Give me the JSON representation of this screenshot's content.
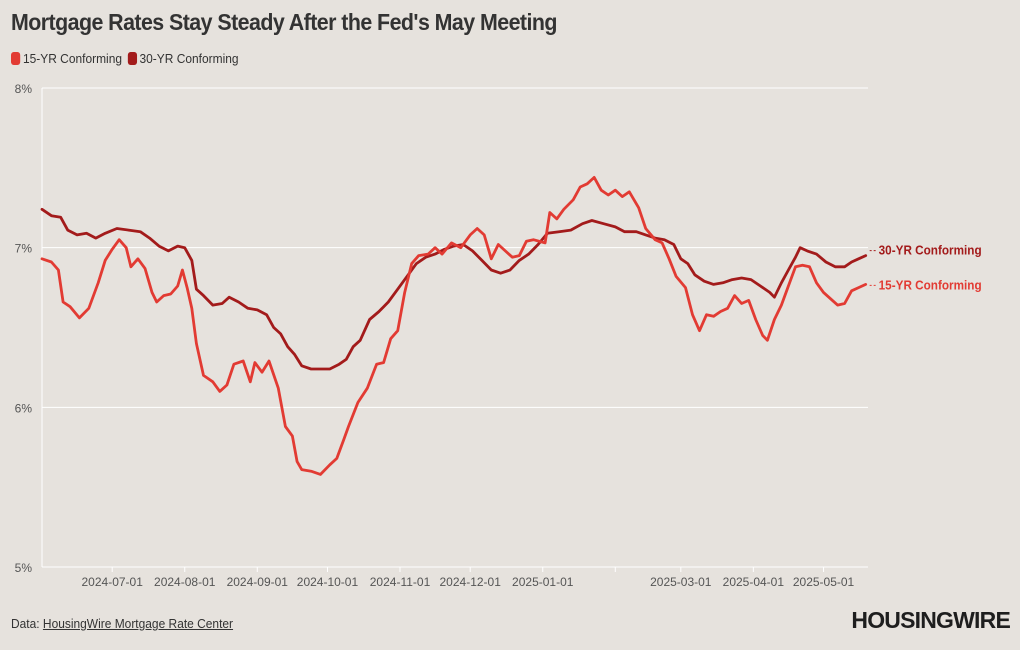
{
  "title": "Mortgage Rates Stay Steady After the Fed's May Meeting",
  "source_prefix": "Data:",
  "source_link": "HousingWire Mortgage Rate Center",
  "logo_text": "HOUSINGWIRE",
  "colors": {
    "background": "#e6e2dd",
    "series_15yr": "#e23b33",
    "series_30yr": "#a31b1b",
    "grid": "#ffffff",
    "axis_text": "#555555"
  },
  "chart_data": {
    "type": "line",
    "title": "Mortgage Rates Stay Steady After the Fed's May Meeting",
    "xlabel": "",
    "ylabel": "",
    "ylim": [
      5,
      8
    ],
    "y_ticks": [
      5,
      6,
      7,
      8
    ],
    "y_tick_labels": [
      "5%",
      "6%",
      "7%",
      "8%"
    ],
    "x_range": [
      "2024-06-01",
      "2025-05-20"
    ],
    "x_ticks": [
      "2024-07-01",
      "2024-08-01",
      "2024-09-01",
      "2024-10-01",
      "2024-11-01",
      "2024-12-01",
      "2025-01-01",
      "2025-03-01",
      "2025-04-01",
      "2025-05-01"
    ],
    "grid": true,
    "legend": "top-left",
    "series": [
      {
        "name": "15-YR Conforming",
        "end_label": "15-YR Conforming",
        "color": "#e23b33",
        "points": [
          [
            "2024-06-01",
            6.93
          ],
          [
            "2024-06-05",
            6.91
          ],
          [
            "2024-06-08",
            6.86
          ],
          [
            "2024-06-10",
            6.66
          ],
          [
            "2024-06-13",
            6.63
          ],
          [
            "2024-06-17",
            6.56
          ],
          [
            "2024-06-21",
            6.62
          ],
          [
            "2024-06-25",
            6.78
          ],
          [
            "2024-06-28",
            6.92
          ],
          [
            "2024-07-01",
            6.99
          ],
          [
            "2024-07-04",
            7.05
          ],
          [
            "2024-07-07",
            7.0
          ],
          [
            "2024-07-09",
            6.88
          ],
          [
            "2024-07-12",
            6.93
          ],
          [
            "2024-07-15",
            6.87
          ],
          [
            "2024-07-18",
            6.72
          ],
          [
            "2024-07-20",
            6.66
          ],
          [
            "2024-07-23",
            6.7
          ],
          [
            "2024-07-26",
            6.71
          ],
          [
            "2024-07-29",
            6.76
          ],
          [
            "2024-07-31",
            6.86
          ],
          [
            "2024-08-02",
            6.75
          ],
          [
            "2024-08-04",
            6.62
          ],
          [
            "2024-08-06",
            6.4
          ],
          [
            "2024-08-09",
            6.2
          ],
          [
            "2024-08-13",
            6.16
          ],
          [
            "2024-08-16",
            6.1
          ],
          [
            "2024-08-19",
            6.14
          ],
          [
            "2024-08-22",
            6.27
          ],
          [
            "2024-08-26",
            6.29
          ],
          [
            "2024-08-29",
            6.16
          ],
          [
            "2024-08-31",
            6.28
          ],
          [
            "2024-09-03",
            6.22
          ],
          [
            "2024-09-06",
            6.29
          ],
          [
            "2024-09-10",
            6.12
          ],
          [
            "2024-09-13",
            5.88
          ],
          [
            "2024-09-16",
            5.82
          ],
          [
            "2024-09-18",
            5.66
          ],
          [
            "2024-09-20",
            5.61
          ],
          [
            "2024-09-24",
            5.6
          ],
          [
            "2024-09-28",
            5.58
          ],
          [
            "2024-10-02",
            5.64
          ],
          [
            "2024-10-05",
            5.68
          ],
          [
            "2024-10-08",
            5.8
          ],
          [
            "2024-10-10",
            5.88
          ],
          [
            "2024-10-14",
            6.03
          ],
          [
            "2024-10-18",
            6.12
          ],
          [
            "2024-10-22",
            6.27
          ],
          [
            "2024-10-25",
            6.28
          ],
          [
            "2024-10-28",
            6.43
          ],
          [
            "2024-10-31",
            6.48
          ],
          [
            "2024-11-03",
            6.72
          ],
          [
            "2024-11-06",
            6.9
          ],
          [
            "2024-11-09",
            6.95
          ],
          [
            "2024-11-13",
            6.96
          ],
          [
            "2024-11-16",
            7.0
          ],
          [
            "2024-11-19",
            6.96
          ],
          [
            "2024-11-23",
            7.03
          ],
          [
            "2024-11-27",
            7.0
          ],
          [
            "2024-12-01",
            7.08
          ],
          [
            "2024-12-04",
            7.12
          ],
          [
            "2024-12-07",
            7.08
          ],
          [
            "2024-12-10",
            6.93
          ],
          [
            "2024-12-13",
            7.02
          ],
          [
            "2024-12-16",
            6.98
          ],
          [
            "2024-12-19",
            6.94
          ],
          [
            "2024-12-22",
            6.95
          ],
          [
            "2024-12-25",
            7.04
          ],
          [
            "2024-12-28",
            7.05
          ],
          [
            "2025-01-02",
            7.03
          ],
          [
            "2025-01-04",
            7.22
          ],
          [
            "2025-01-07",
            7.18
          ],
          [
            "2025-01-10",
            7.24
          ],
          [
            "2025-01-14",
            7.3
          ],
          [
            "2025-01-17",
            7.38
          ],
          [
            "2025-01-20",
            7.4
          ],
          [
            "2025-01-23",
            7.44
          ],
          [
            "2025-01-26",
            7.36
          ],
          [
            "2025-01-29",
            7.33
          ],
          [
            "2025-02-01",
            7.36
          ],
          [
            "2025-02-04",
            7.32
          ],
          [
            "2025-02-07",
            7.35
          ],
          [
            "2025-02-11",
            7.25
          ],
          [
            "2025-02-14",
            7.12
          ],
          [
            "2025-02-18",
            7.05
          ],
          [
            "2025-02-21",
            7.03
          ],
          [
            "2025-02-24",
            6.93
          ],
          [
            "2025-02-27",
            6.82
          ],
          [
            "2025-03-03",
            6.75
          ],
          [
            "2025-03-06",
            6.58
          ],
          [
            "2025-03-09",
            6.48
          ],
          [
            "2025-03-12",
            6.58
          ],
          [
            "2025-03-15",
            6.57
          ],
          [
            "2025-03-18",
            6.6
          ],
          [
            "2025-03-21",
            6.62
          ],
          [
            "2025-03-24",
            6.7
          ],
          [
            "2025-03-27",
            6.65
          ],
          [
            "2025-03-30",
            6.67
          ],
          [
            "2025-04-02",
            6.55
          ],
          [
            "2025-04-05",
            6.45
          ],
          [
            "2025-04-07",
            6.42
          ],
          [
            "2025-04-10",
            6.55
          ],
          [
            "2025-04-13",
            6.64
          ],
          [
            "2025-04-16",
            6.76
          ],
          [
            "2025-04-19",
            6.88
          ],
          [
            "2025-04-22",
            6.89
          ],
          [
            "2025-04-25",
            6.88
          ],
          [
            "2025-04-28",
            6.78
          ],
          [
            "2025-05-01",
            6.72
          ],
          [
            "2025-05-04",
            6.68
          ],
          [
            "2025-05-07",
            6.64
          ],
          [
            "2025-05-10",
            6.65
          ],
          [
            "2025-05-13",
            6.73
          ],
          [
            "2025-05-16",
            6.75
          ],
          [
            "2025-05-19",
            6.77
          ]
        ]
      },
      {
        "name": "30-YR Conforming",
        "end_label": "30-YR Conforming",
        "color": "#a31b1b",
        "points": [
          [
            "2024-06-01",
            7.24
          ],
          [
            "2024-06-05",
            7.2
          ],
          [
            "2024-06-09",
            7.19
          ],
          [
            "2024-06-12",
            7.11
          ],
          [
            "2024-06-16",
            7.08
          ],
          [
            "2024-06-20",
            7.09
          ],
          [
            "2024-06-24",
            7.06
          ],
          [
            "2024-06-28",
            7.09
          ],
          [
            "2024-07-03",
            7.12
          ],
          [
            "2024-07-08",
            7.11
          ],
          [
            "2024-07-13",
            7.1
          ],
          [
            "2024-07-17",
            7.06
          ],
          [
            "2024-07-21",
            7.01
          ],
          [
            "2024-07-25",
            6.98
          ],
          [
            "2024-07-29",
            7.01
          ],
          [
            "2024-08-01",
            7.0
          ],
          [
            "2024-08-04",
            6.92
          ],
          [
            "2024-08-06",
            6.74
          ],
          [
            "2024-08-09",
            6.7
          ],
          [
            "2024-08-13",
            6.64
          ],
          [
            "2024-08-17",
            6.65
          ],
          [
            "2024-08-20",
            6.69
          ],
          [
            "2024-08-24",
            6.66
          ],
          [
            "2024-08-28",
            6.62
          ],
          [
            "2024-09-01",
            6.61
          ],
          [
            "2024-09-05",
            6.58
          ],
          [
            "2024-09-08",
            6.5
          ],
          [
            "2024-09-11",
            6.46
          ],
          [
            "2024-09-14",
            6.38
          ],
          [
            "2024-09-17",
            6.33
          ],
          [
            "2024-09-20",
            6.26
          ],
          [
            "2024-09-24",
            6.24
          ],
          [
            "2024-09-28",
            6.24
          ],
          [
            "2024-10-02",
            6.24
          ],
          [
            "2024-10-06",
            6.27
          ],
          [
            "2024-10-09",
            6.3
          ],
          [
            "2024-10-12",
            6.38
          ],
          [
            "2024-10-15",
            6.42
          ],
          [
            "2024-10-19",
            6.55
          ],
          [
            "2024-10-23",
            6.6
          ],
          [
            "2024-10-27",
            6.66
          ],
          [
            "2024-10-31",
            6.74
          ],
          [
            "2024-11-04",
            6.82
          ],
          [
            "2024-11-08",
            6.9
          ],
          [
            "2024-11-12",
            6.94
          ],
          [
            "2024-11-16",
            6.96
          ],
          [
            "2024-11-20",
            6.99
          ],
          [
            "2024-11-24",
            7.01
          ],
          [
            "2024-11-28",
            7.02
          ],
          [
            "2024-12-02",
            6.98
          ],
          [
            "2024-12-06",
            6.92
          ],
          [
            "2024-12-10",
            6.86
          ],
          [
            "2024-12-14",
            6.84
          ],
          [
            "2024-12-18",
            6.86
          ],
          [
            "2024-12-22",
            6.92
          ],
          [
            "2024-12-26",
            6.96
          ],
          [
            "2024-12-30",
            7.02
          ],
          [
            "2025-01-03",
            7.09
          ],
          [
            "2025-01-08",
            7.1
          ],
          [
            "2025-01-13",
            7.11
          ],
          [
            "2025-01-18",
            7.15
          ],
          [
            "2025-01-22",
            7.17
          ],
          [
            "2025-01-27",
            7.15
          ],
          [
            "2025-02-01",
            7.13
          ],
          [
            "2025-02-05",
            7.1
          ],
          [
            "2025-02-10",
            7.1
          ],
          [
            "2025-02-14",
            7.08
          ],
          [
            "2025-02-18",
            7.06
          ],
          [
            "2025-02-22",
            7.05
          ],
          [
            "2025-02-26",
            7.02
          ],
          [
            "2025-03-01",
            6.93
          ],
          [
            "2025-03-04",
            6.9
          ],
          [
            "2025-03-07",
            6.83
          ],
          [
            "2025-03-11",
            6.79
          ],
          [
            "2025-03-15",
            6.77
          ],
          [
            "2025-03-19",
            6.78
          ],
          [
            "2025-03-23",
            6.8
          ],
          [
            "2025-03-27",
            6.81
          ],
          [
            "2025-03-31",
            6.8
          ],
          [
            "2025-04-04",
            6.76
          ],
          [
            "2025-04-08",
            6.72
          ],
          [
            "2025-04-10",
            6.69
          ],
          [
            "2025-04-13",
            6.78
          ],
          [
            "2025-04-16",
            6.86
          ],
          [
            "2025-04-19",
            6.94
          ],
          [
            "2025-04-21",
            7.0
          ],
          [
            "2025-04-24",
            6.98
          ],
          [
            "2025-04-28",
            6.96
          ],
          [
            "2025-05-02",
            6.91
          ],
          [
            "2025-05-06",
            6.88
          ],
          [
            "2025-05-10",
            6.88
          ],
          [
            "2025-05-13",
            6.91
          ],
          [
            "2025-05-16",
            6.93
          ],
          [
            "2025-05-19",
            6.95
          ]
        ]
      }
    ]
  }
}
